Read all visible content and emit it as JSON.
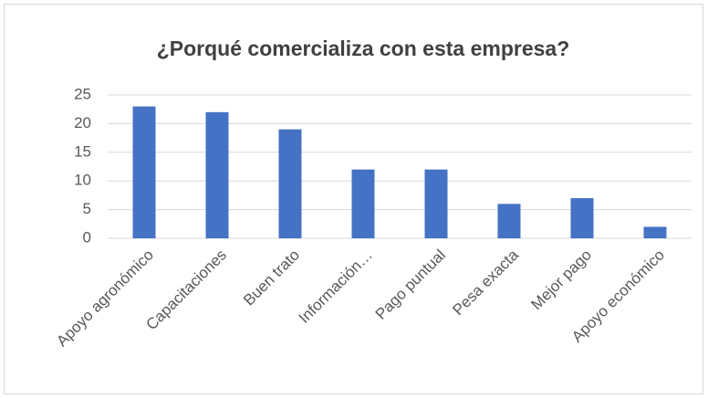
{
  "chart_data": {
    "type": "bar",
    "title": "¿Porqué comercializa con esta empresa?",
    "categories": [
      "Apoyo agronómico",
      "Capacitaciones",
      "Buen trato",
      "Información…",
      "Pago puntual",
      "Pesa exacta",
      "Mejor pago",
      "Apoyo económico"
    ],
    "values": [
      23,
      22,
      19,
      12,
      12,
      6,
      7,
      2
    ],
    "color": "#4472c4",
    "ylim": [
      0,
      25
    ],
    "yticks": [
      0,
      5,
      10,
      15,
      20,
      25
    ],
    "grid": true
  }
}
